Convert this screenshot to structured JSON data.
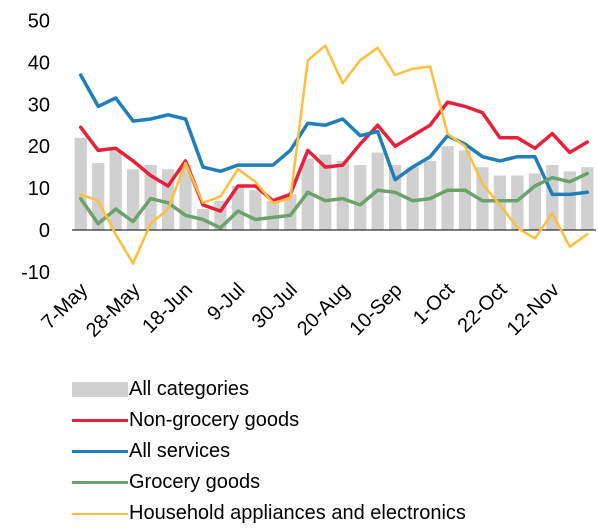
{
  "chart_data": {
    "type": "bar+line",
    "title": "",
    "xlabel": "",
    "ylabel": "",
    "ylim": [
      -10,
      50
    ],
    "yticks": [
      -10,
      0,
      10,
      20,
      30,
      40,
      50
    ],
    "xtick_labels": [
      "7-May",
      "28-May",
      "18-Jun",
      "9-Jul",
      "30-Jul",
      "20-Aug",
      "10-Sep",
      "1-Oct",
      "22-Oct",
      "12-Nov"
    ],
    "legend_position": "bottom",
    "grid": false,
    "x": [
      "7-May",
      "14-May",
      "21-May",
      "28-May",
      "4-Jun",
      "11-Jun",
      "18-Jun",
      "25-Jun",
      "2-Jul",
      "9-Jul",
      "16-Jul",
      "23-Jul",
      "30-Jul",
      "6-Aug",
      "13-Aug",
      "20-Aug",
      "27-Aug",
      "3-Sep",
      "10-Sep",
      "17-Sep",
      "24-Sep",
      "1-Oct",
      "8-Oct",
      "15-Oct",
      "22-Oct",
      "29-Oct",
      "5-Nov",
      "12-Nov",
      "19-Nov",
      "26-Nov"
    ],
    "bars": {
      "name": "All categories",
      "color": "#d0d0d0",
      "values": [
        22,
        16,
        19,
        14.5,
        15.5,
        14.5,
        15.5,
        5,
        7,
        10.5,
        9.5,
        7,
        8.5,
        17,
        18,
        16.5,
        15.5,
        18.5,
        15.5,
        15,
        16.5,
        20,
        19,
        15,
        13,
        13,
        13.5,
        15.5,
        14,
        15
      ]
    },
    "series": [
      {
        "name": "Non-grocery goods",
        "color": "#e8203c",
        "values": [
          24.5,
          19,
          19.5,
          16.5,
          13,
          10.5,
          16.5,
          6,
          4.5,
          10.5,
          10.5,
          7,
          8.5,
          19,
          15,
          15.5,
          20.5,
          25,
          20,
          22.5,
          25,
          30.5,
          29.5,
          28,
          22,
          22,
          19.5,
          23,
          18.5,
          21
        ]
      },
      {
        "name": "All services",
        "color": "#1f7fb6",
        "values": [
          37,
          29.5,
          31.5,
          26,
          26.5,
          27.5,
          26.5,
          15,
          14,
          15.5,
          15.5,
          15.5,
          19,
          25.5,
          25,
          26.5,
          22.5,
          23.5,
          12,
          15,
          17.5,
          22.5,
          20.5,
          17.5,
          16.5,
          17.5,
          17.5,
          8.5,
          8.5,
          9
        ]
      },
      {
        "name": "Grocery goods",
        "color": "#6aa36a",
        "values": [
          7.5,
          1.5,
          5,
          2,
          7.5,
          6.5,
          3.5,
          2.5,
          0.5,
          4.5,
          2.5,
          3,
          3.5,
          9,
          7,
          7.5,
          6,
          9.5,
          9,
          7,
          7.5,
          9.5,
          9.5,
          7,
          7,
          7,
          10.5,
          12.5,
          11.5,
          13.5
        ]
      },
      {
        "name": "Household appliances and electronics",
        "color": "#ffbe3c",
        "values": [
          8.5,
          7,
          -1,
          -8,
          1.5,
          5,
          16,
          6.5,
          8,
          14.5,
          11.5,
          6.5,
          7.5,
          40.5,
          44,
          35,
          40.5,
          43.5,
          37,
          38.5,
          39,
          23,
          20,
          11,
          6,
          0.5,
          -2,
          4,
          -4,
          -1
        ]
      }
    ]
  },
  "legend": [
    {
      "label": "All categories",
      "color": "#d0d0d0",
      "kind": "bar"
    },
    {
      "label": "Non-grocery goods",
      "color": "#e8203c",
      "kind": "line"
    },
    {
      "label": "All services",
      "color": "#1f7fb6",
      "kind": "line"
    },
    {
      "label": "Grocery goods",
      "color": "#6aa36a",
      "kind": "line"
    },
    {
      "label": "Household appliances and electronics",
      "color": "#ffbe3c",
      "kind": "line"
    }
  ]
}
